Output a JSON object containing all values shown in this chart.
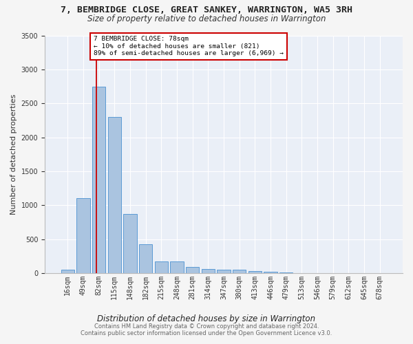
{
  "title": "7, BEMBRIDGE CLOSE, GREAT SANKEY, WARRINGTON, WA5 3RH",
  "subtitle": "Size of property relative to detached houses in Warrington",
  "xlabel": "Distribution of detached houses by size in Warrington",
  "ylabel": "Number of detached properties",
  "bar_labels": [
    "16sqm",
    "49sqm",
    "82sqm",
    "115sqm",
    "148sqm",
    "182sqm",
    "215sqm",
    "248sqm",
    "281sqm",
    "314sqm",
    "347sqm",
    "380sqm",
    "413sqm",
    "446sqm",
    "479sqm",
    "513sqm",
    "546sqm",
    "579sqm",
    "612sqm",
    "645sqm",
    "678sqm"
  ],
  "bar_values": [
    50,
    1100,
    2750,
    2300,
    875,
    430,
    175,
    175,
    90,
    65,
    50,
    50,
    30,
    25,
    10,
    0,
    0,
    0,
    0,
    0,
    0
  ],
  "bar_color": "#aac4e0",
  "bar_edge_color": "#5b9bd5",
  "background_color": "#eaeff7",
  "grid_color": "#ffffff",
  "red_line_x": 1.82,
  "annotation_text": "7 BEMBRIDGE CLOSE: 78sqm\n← 10% of detached houses are smaller (821)\n89% of semi-detached houses are larger (6,969) →",
  "annotation_box_color": "#ffffff",
  "annotation_border_color": "#cc0000",
  "footer_text": "Contains HM Land Registry data © Crown copyright and database right 2024.\nContains public sector information licensed under the Open Government Licence v3.0.",
  "ylim": [
    0,
    3500
  ],
  "yticks": [
    0,
    500,
    1000,
    1500,
    2000,
    2500,
    3000,
    3500
  ],
  "title_fontsize": 9.5,
  "subtitle_fontsize": 8.5,
  "xlabel_fontsize": 8.5,
  "ylabel_fontsize": 8,
  "tick_fontsize": 7,
  "annotation_fontsize": 6.8,
  "footer_fontsize": 6
}
